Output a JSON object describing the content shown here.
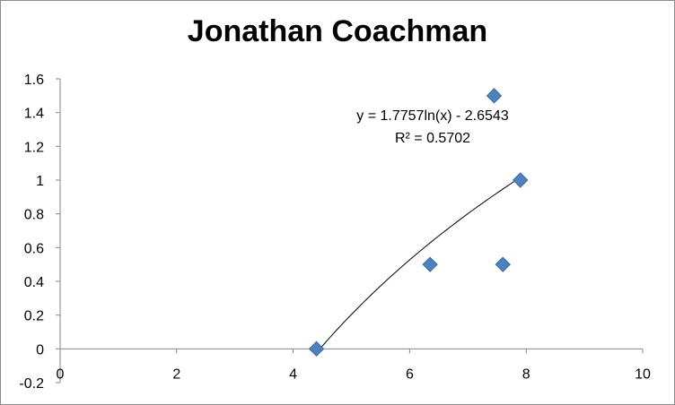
{
  "chart_data": {
    "type": "scatter",
    "title": "Jonathan Coachman",
    "xlabel": "",
    "ylabel": "",
    "xlim": [
      0,
      10
    ],
    "ylim": [
      -0.2,
      1.6
    ],
    "x_ticks": [
      "0",
      "2",
      "4",
      "6",
      "8",
      "10"
    ],
    "y_ticks": [
      "-0.2",
      "0",
      "0.2",
      "0.4",
      "0.6",
      "0.8",
      "1",
      "1.2",
      "1.4",
      "1.6"
    ],
    "grid": false,
    "marker": "diamond",
    "marker_color": "#4f81bd",
    "points": [
      {
        "x": 4.4,
        "y": 0
      },
      {
        "x": 6.35,
        "y": 0.5
      },
      {
        "x": 7.45,
        "y": 1.5
      },
      {
        "x": 7.6,
        "y": 0.5
      },
      {
        "x": 7.9,
        "y": 1
      }
    ],
    "trendline": {
      "type": "logarithmic",
      "a": 1.7757,
      "b": -2.6543,
      "x_range": [
        4.4,
        7.9
      ],
      "equation": "y = 1.7757ln(x) - 2.6543",
      "r2": "R² = 0.5702"
    }
  }
}
